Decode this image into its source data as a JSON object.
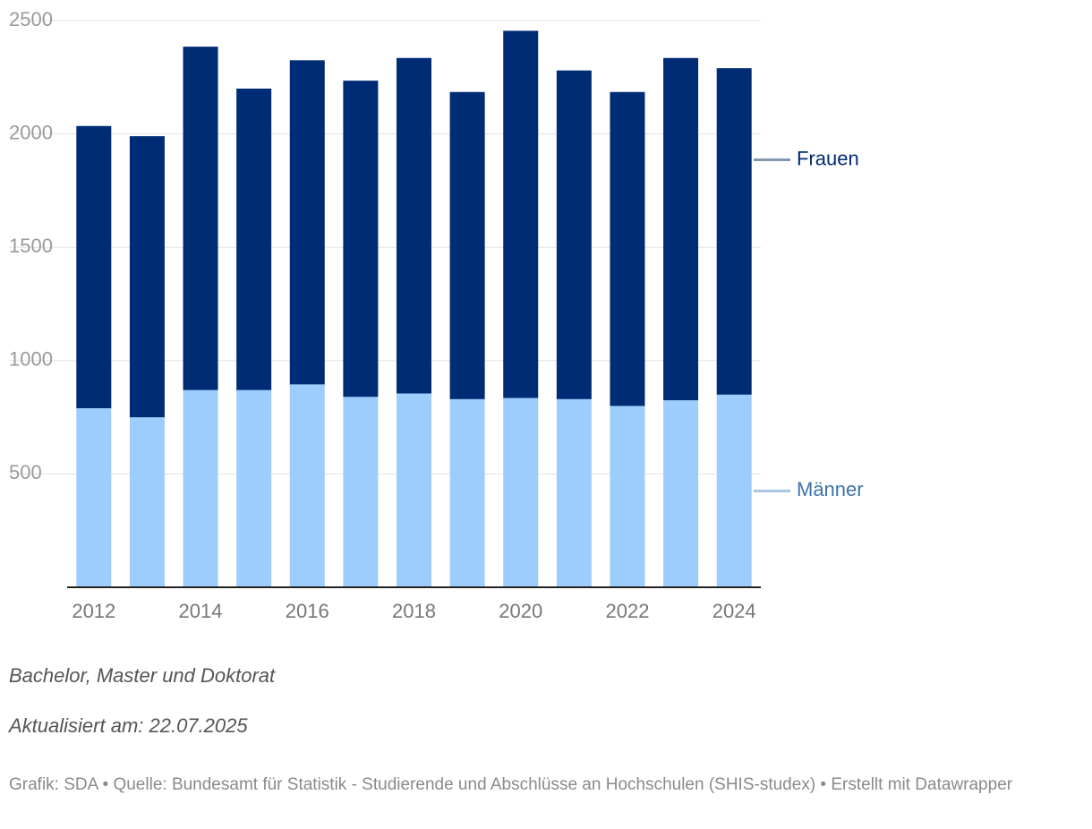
{
  "chart_data": {
    "type": "bar",
    "stacked": true,
    "categories": [
      "2012",
      "2013",
      "2014",
      "2015",
      "2016",
      "2017",
      "2018",
      "2019",
      "2020",
      "2021",
      "2022",
      "2023",
      "2024"
    ],
    "x_tick_labels": [
      "2012",
      "2014",
      "2016",
      "2018",
      "2020",
      "2022",
      "2024"
    ],
    "series": [
      {
        "name": "Männer",
        "color": "#9dcdfd",
        "values": [
          790,
          750,
          870,
          870,
          895,
          840,
          855,
          830,
          835,
          830,
          800,
          825,
          850
        ]
      },
      {
        "name": "Frauen",
        "color": "#002b75",
        "values": [
          1245,
          1240,
          1515,
          1330,
          1430,
          1395,
          1480,
          1355,
          1620,
          1450,
          1385,
          1510,
          1440
        ]
      }
    ],
    "ylim": [
      0,
      2500
    ],
    "yticks": [
      "500",
      "1000",
      "1500",
      "2000",
      "2500"
    ],
    "grid": true,
    "legend_colors": {
      "Frauen": "#002b75",
      "Männer": "#3d73a8"
    },
    "legend_line_colors": {
      "Frauen": "#8497b0",
      "Männer": "#a9c4dd"
    }
  },
  "notes": {
    "subtitle": "Bachelor, Master und Doktorat",
    "updated": "Aktualisiert am: 22.07.2025"
  },
  "footer": {
    "text": "Grafik: SDA • Quelle: Bundesamt für Statistik - Studierende und Abschlüsse an Hochschulen (SHIS-studex) • Erstellt mit Datawrapper"
  }
}
